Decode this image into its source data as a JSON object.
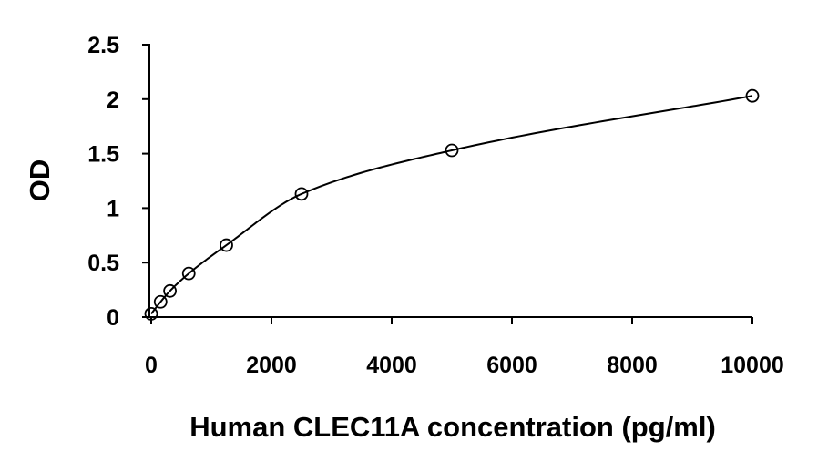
{
  "chart_data": {
    "type": "scatter",
    "title": "",
    "xlabel": "Human CLEC11A concentration (pg/ml)",
    "ylabel": "OD",
    "xlim": [
      0,
      10000
    ],
    "ylim": [
      0,
      2.5
    ],
    "xticks": [
      0,
      2000,
      4000,
      6000,
      8000,
      10000
    ],
    "xtick_labels": [
      "0",
      "2000",
      "4000",
      "6000",
      "8000",
      "10000"
    ],
    "yticks": [
      0,
      0.5,
      1,
      1.5,
      2,
      2.5
    ],
    "ytick_labels": [
      "0",
      "0.5",
      "1",
      "1.5",
      "2",
      "2.5"
    ],
    "grid": false,
    "legend": "none",
    "series": [
      {
        "marker": "open-circle",
        "fit": "smooth curve",
        "x": [
          0,
          156,
          312,
          625,
          1250,
          2500,
          5000,
          10000
        ],
        "y": [
          0.03,
          0.14,
          0.24,
          0.4,
          0.66,
          1.13,
          1.53,
          2.03
        ]
      }
    ],
    "colors": {
      "line": "#000000",
      "marker": "#000000",
      "background": "#ffffff"
    }
  }
}
